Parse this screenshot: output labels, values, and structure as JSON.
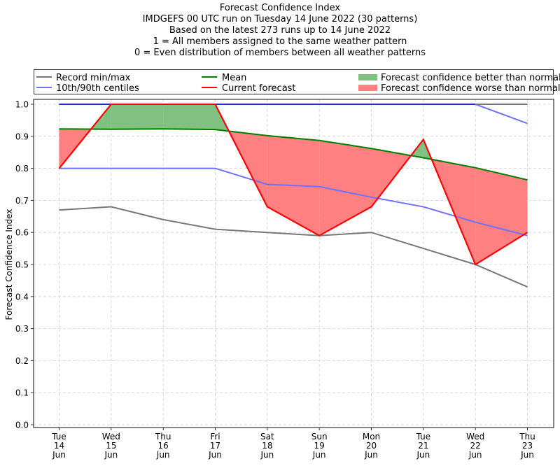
{
  "chart_data": {
    "type": "line",
    "title": "Forecast Confidence Index",
    "subtitle_lines": [
      "IMDGEFS 00 UTC run on Tuesday 14 June 2022 (30 patterns)",
      "Based on the latest 273 runs up to 14 June 2022",
      "1 = All members assigned to the same weather pattern",
      "0 = Even distribution of members between all weather patterns"
    ],
    "xlabel": "",
    "ylabel": "Forecast Confidence Index",
    "ylim": [
      0.0,
      1.0
    ],
    "yticks": [
      "0.0",
      "0.1",
      "0.2",
      "0.3",
      "0.4",
      "0.5",
      "0.6",
      "0.7",
      "0.8",
      "0.9",
      "1.0"
    ],
    "grid": true,
    "legend_position": "top",
    "categories": [
      {
        "day": "Tue",
        "date": "14",
        "month": "Jun"
      },
      {
        "day": "Wed",
        "date": "15",
        "month": "Jun"
      },
      {
        "day": "Thu",
        "date": "16",
        "month": "Jun"
      },
      {
        "day": "Fri",
        "date": "17",
        "month": "Jun"
      },
      {
        "day": "Sat",
        "date": "18",
        "month": "Jun"
      },
      {
        "day": "Sun",
        "date": "19",
        "month": "Jun"
      },
      {
        "day": "Mon",
        "date": "20",
        "month": "Jun"
      },
      {
        "day": "Tue",
        "date": "21",
        "month": "Jun"
      },
      {
        "day": "Wed",
        "date": "22",
        "month": "Jun"
      },
      {
        "day": "Thu",
        "date": "23",
        "month": "Jun"
      }
    ],
    "series": [
      {
        "name": "Record min",
        "color": "#777777",
        "values": [
          0.67,
          0.68,
          0.64,
          0.61,
          0.6,
          0.59,
          0.6,
          0.55,
          0.5,
          0.43
        ]
      },
      {
        "name": "Record max",
        "color": "#777777",
        "values": [
          1.0,
          1.0,
          1.0,
          1.0,
          1.0,
          1.0,
          1.0,
          1.0,
          1.0,
          1.0
        ]
      },
      {
        "name": "10th centile",
        "color": "#7070ff",
        "values": [
          0.8,
          0.8,
          0.8,
          0.8,
          0.75,
          0.743,
          0.71,
          0.68,
          0.632,
          0.59
        ]
      },
      {
        "name": "90th centile",
        "color": "#7070ff",
        "values": [
          1.0,
          1.0,
          1.0,
          1.0,
          1.0,
          1.0,
          1.0,
          1.0,
          1.0,
          0.94
        ]
      },
      {
        "name": "Mean",
        "color": "#008000",
        "values": [
          0.923,
          0.922,
          0.923,
          0.921,
          0.902,
          0.887,
          0.862,
          0.833,
          0.802,
          0.764
        ]
      },
      {
        "name": "Current forecast",
        "color": "#ff0000",
        "values": [
          0.8,
          1.0,
          1.0,
          1.0,
          0.68,
          0.59,
          0.68,
          0.89,
          0.5,
          0.6
        ]
      }
    ],
    "fill_colors": {
      "better": "#80c080",
      "worse": "#ff8080"
    },
    "legend": [
      {
        "label": "Record min/max",
        "kind": "line",
        "color": "#777777"
      },
      {
        "label": "10th/90th centiles",
        "kind": "line",
        "color": "#7070ff"
      },
      {
        "label": "Mean",
        "kind": "line",
        "color": "#008000"
      },
      {
        "label": "Current forecast",
        "kind": "line",
        "color": "#ff0000"
      },
      {
        "label": "Forecast confidence better than normal",
        "kind": "patch",
        "color": "#80c080"
      },
      {
        "label": "Forecast confidence worse than normal",
        "kind": "patch",
        "color": "#ff8080"
      }
    ]
  }
}
